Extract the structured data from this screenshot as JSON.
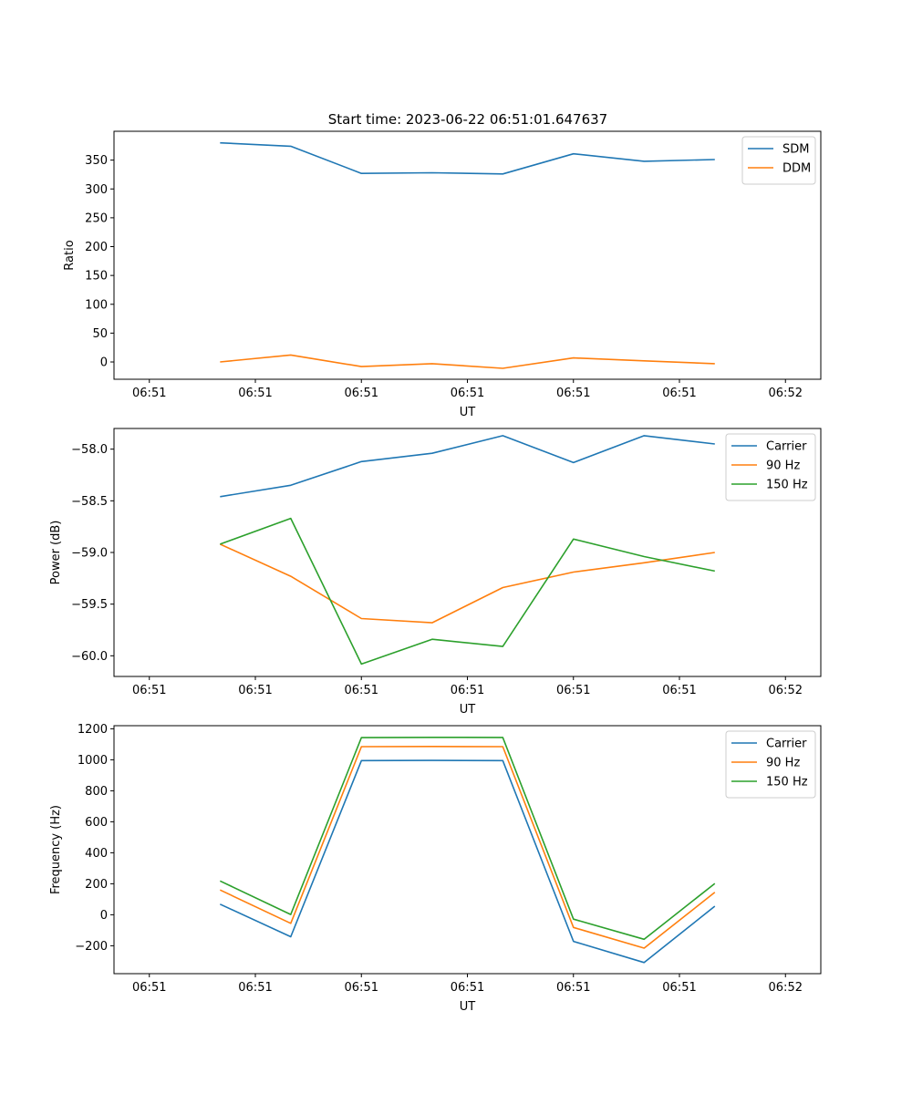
{
  "figure": {
    "title": "Start time: 2023-06-22 06:51:01.647637"
  },
  "colors": {
    "blue": "#1f77b4",
    "orange": "#ff7f0e",
    "green": "#2ca02c"
  },
  "chart_data": [
    {
      "type": "line",
      "title": "Start time: 2023-06-22 06:51:01.647637",
      "xlabel": "UT",
      "ylabel": "Ratio",
      "x": [
        1,
        2,
        3,
        4,
        5,
        6,
        7,
        8
      ],
      "xlim": [
        -0.5,
        9.5
      ],
      "xticks": [
        0,
        1.5,
        3,
        4.5,
        6,
        7.5,
        9
      ],
      "xticklabels": [
        "06:51",
        "06:51",
        "06:51",
        "06:51",
        "06:51",
        "06:51",
        "06:52"
      ],
      "ylim": [
        -30,
        400
      ],
      "yticks": [
        0,
        50,
        100,
        150,
        200,
        250,
        300,
        350
      ],
      "yticklabels": [
        "0",
        "50",
        "100",
        "150",
        "200",
        "250",
        "300",
        "350"
      ],
      "legend": "top-right",
      "grid": false,
      "series": [
        {
          "name": "SDM",
          "color": "#1f77b4",
          "values": [
            380,
            374,
            327,
            328,
            326,
            361,
            348,
            351
          ]
        },
        {
          "name": "DDM",
          "color": "#ff7f0e",
          "values": [
            0,
            12,
            -8,
            -3,
            -11,
            7,
            2,
            -3
          ]
        }
      ]
    },
    {
      "type": "line",
      "xlabel": "UT",
      "ylabel": "Power (dB)",
      "x": [
        1,
        2,
        3,
        4,
        5,
        6,
        7,
        8
      ],
      "xlim": [
        -0.5,
        9.5
      ],
      "xticks": [
        0,
        1.5,
        3,
        4.5,
        6,
        7.5,
        9
      ],
      "xticklabels": [
        "06:51",
        "06:51",
        "06:51",
        "06:51",
        "06:51",
        "06:51",
        "06:52"
      ],
      "ylim": [
        -60.2,
        -57.8
      ],
      "yticks": [
        -60.0,
        -59.5,
        -59.0,
        -58.5,
        -58.0
      ],
      "yticklabels": [
        "−60.0",
        "−59.5",
        "−59.0",
        "−58.5",
        "−58.0"
      ],
      "legend": "top-right",
      "grid": false,
      "series": [
        {
          "name": "Carrier",
          "color": "#1f77b4",
          "values": [
            -58.46,
            -58.35,
            -58.12,
            -58.04,
            -57.87,
            -58.13,
            -57.87,
            -57.95
          ]
        },
        {
          "name": "90 Hz",
          "color": "#ff7f0e",
          "values": [
            -58.92,
            -59.23,
            -59.64,
            -59.68,
            -59.34,
            -59.19,
            -59.1,
            -59.0
          ]
        },
        {
          "name": "150 Hz",
          "color": "#2ca02c",
          "values": [
            -58.92,
            -58.67,
            -60.08,
            -59.84,
            -59.91,
            -58.87,
            -59.04,
            -59.18
          ]
        }
      ]
    },
    {
      "type": "line",
      "xlabel": "UT",
      "ylabel": "Frequency (Hz)",
      "x": [
        1,
        2,
        3,
        4,
        5,
        6,
        7,
        8
      ],
      "xlim": [
        -0.5,
        9.5
      ],
      "xticks": [
        0,
        1.5,
        3,
        4.5,
        6,
        7.5,
        9
      ],
      "xticklabels": [
        "06:51",
        "06:51",
        "06:51",
        "06:51",
        "06:51",
        "06:51",
        "06:52"
      ],
      "ylim": [
        -380,
        1220
      ],
      "yticks": [
        -200,
        0,
        200,
        400,
        600,
        800,
        1000,
        1200
      ],
      "yticklabels": [
        "−200",
        "0",
        "200",
        "400",
        "600",
        "800",
        "1000",
        "1200"
      ],
      "legend": "top-right",
      "grid": false,
      "series": [
        {
          "name": "Carrier",
          "color": "#1f77b4",
          "values": [
            68,
            -142,
            995,
            996,
            995,
            -172,
            -308,
            55
          ]
        },
        {
          "name": "90 Hz",
          "color": "#ff7f0e",
          "values": [
            160,
            -55,
            1085,
            1086,
            1085,
            -82,
            -215,
            145
          ]
        },
        {
          "name": "150 Hz",
          "color": "#2ca02c",
          "values": [
            218,
            2,
            1143,
            1145,
            1144,
            -28,
            -158,
            202
          ]
        }
      ]
    }
  ]
}
